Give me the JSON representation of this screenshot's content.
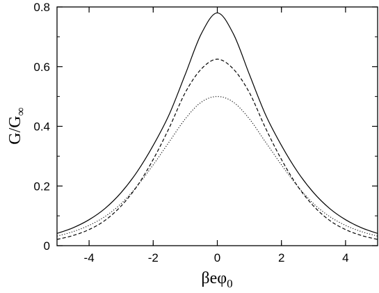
{
  "chart_data": {
    "type": "line",
    "xlabel": "βeφ",
    "xlabel_subscript": "0",
    "ylabel": "G/G",
    "ylabel_subscript": "∞",
    "xlim": [
      -5,
      5
    ],
    "ylim": [
      0,
      0.8
    ],
    "x_ticks": [
      -4,
      -2,
      0,
      2,
      4
    ],
    "x_tick_labels": [
      "-4",
      "-2",
      "0",
      "2",
      "4"
    ],
    "y_ticks": [
      0,
      0.2,
      0.4,
      0.6,
      0.8
    ],
    "y_tick_labels": [
      "0",
      "0.2",
      "0.4",
      "0.6",
      "0.8"
    ],
    "grid": false,
    "legend": "none",
    "series": [
      {
        "style": "solid",
        "x": [
          -5,
          -4.5,
          -4,
          -3.5,
          -3,
          -2.5,
          -2,
          -1.5,
          -1,
          -0.5,
          0,
          0.5,
          1,
          1.5,
          2,
          2.5,
          3,
          3.5,
          4,
          4.5,
          5
        ],
        "y": [
          0.041,
          0.06,
          0.087,
          0.125,
          0.178,
          0.248,
          0.336,
          0.44,
          0.574,
          0.71,
          0.78,
          0.71,
          0.574,
          0.44,
          0.336,
          0.248,
          0.178,
          0.125,
          0.087,
          0.06,
          0.041
        ]
      },
      {
        "style": "dashed",
        "x": [
          -5,
          -4.5,
          -4,
          -3.5,
          -3,
          -2.5,
          -2,
          -1.5,
          -1,
          -0.5,
          0,
          0.5,
          1,
          1.5,
          2,
          2.5,
          3,
          3.5,
          4,
          4.5,
          5
        ],
        "y": [
          0.021,
          0.034,
          0.054,
          0.085,
          0.133,
          0.2,
          0.289,
          0.395,
          0.513,
          0.592,
          0.625,
          0.592,
          0.513,
          0.395,
          0.289,
          0.2,
          0.133,
          0.085,
          0.054,
          0.034,
          0.021
        ]
      },
      {
        "style": "dotted",
        "x": [
          -5,
          -4.5,
          -4,
          -3.5,
          -3,
          -2.5,
          -2,
          -1.5,
          -1,
          -0.5,
          0,
          0.5,
          1,
          1.5,
          2,
          2.5,
          3,
          3.5,
          4,
          4.5,
          5
        ],
        "y": [
          0.032,
          0.047,
          0.068,
          0.098,
          0.141,
          0.2,
          0.271,
          0.348,
          0.425,
          0.481,
          0.5,
          0.481,
          0.425,
          0.348,
          0.271,
          0.2,
          0.141,
          0.098,
          0.068,
          0.047,
          0.032
        ]
      }
    ]
  }
}
